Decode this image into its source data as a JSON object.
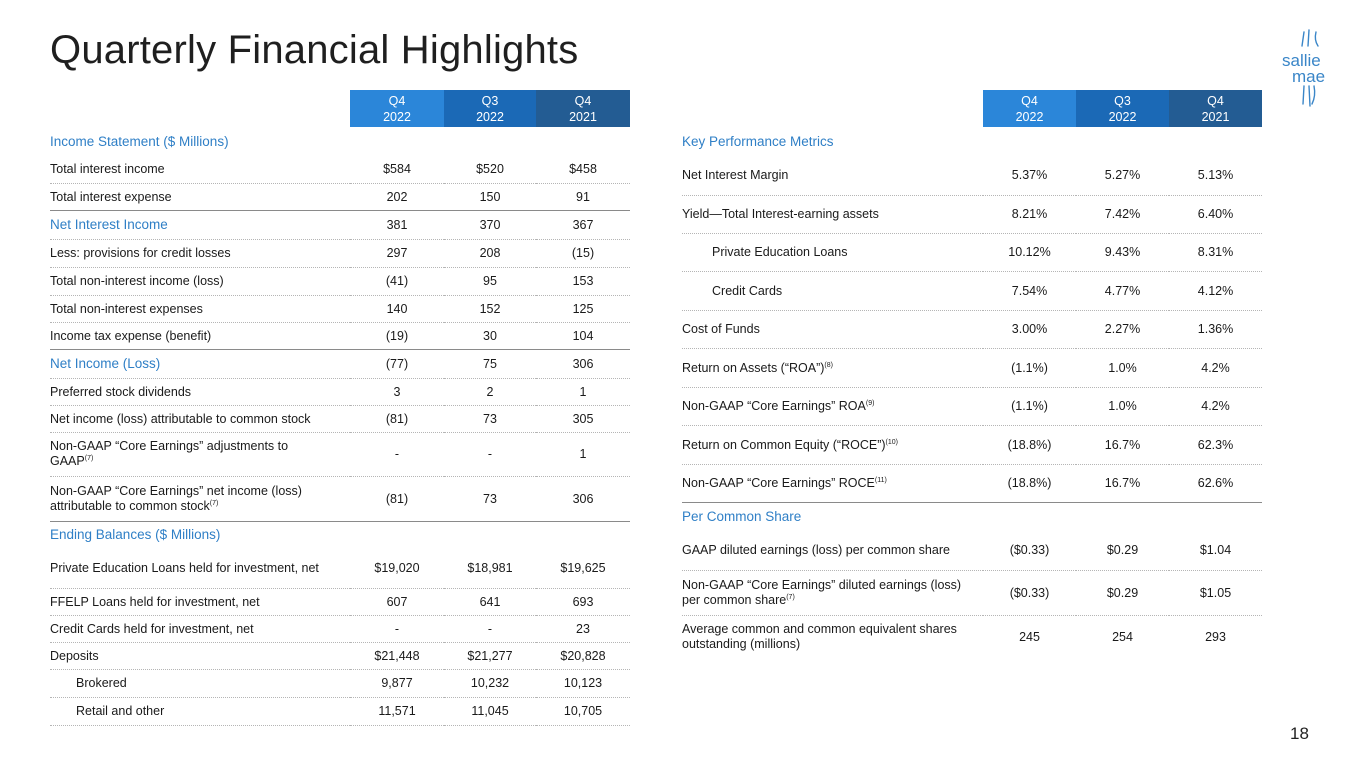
{
  "title": "Quarterly Financial Highlights",
  "page_number": "18",
  "logo": {
    "line1": "sallie",
    "line2": "mae"
  },
  "left_table": {
    "columns": [
      {
        "q": "Q4",
        "year": "2022"
      },
      {
        "q": "Q3",
        "year": "2022"
      },
      {
        "q": "Q4",
        "year": "2021"
      }
    ],
    "section_income": "Income Statement ($ Millions)",
    "income_rows": [
      {
        "label": "Total interest income",
        "v": [
          "$584",
          "$520",
          "$458"
        ]
      },
      {
        "label": "Total interest expense",
        "v": [
          "202",
          "150",
          "91"
        ]
      },
      {
        "label": "Net Interest Income",
        "v": [
          "381",
          "370",
          "367"
        ]
      },
      {
        "label": "Less: provisions for credit losses",
        "v": [
          "297",
          "208",
          "(15)"
        ]
      },
      {
        "label": "Total non-interest income (loss)",
        "v": [
          "(41)",
          "95",
          "153"
        ]
      },
      {
        "label": "Total non-interest expenses",
        "v": [
          "140",
          "152",
          "125"
        ]
      },
      {
        "label": "Income tax expense (benefit)",
        "v": [
          "(19)",
          "30",
          "104"
        ]
      },
      {
        "label": "Net Income (Loss)",
        "v": [
          "(77)",
          "75",
          "306"
        ]
      },
      {
        "label": "Preferred stock dividends",
        "v": [
          "3",
          "2",
          "1"
        ]
      },
      {
        "label": "Net income (loss) attributable to common stock",
        "v": [
          "(81)",
          "73",
          "305"
        ]
      },
      {
        "label": "Non-GAAP “Core Earnings” adjustments to GAAP",
        "sup": "(7)",
        "v": [
          "-",
          "-",
          "1"
        ]
      },
      {
        "label": "Non-GAAP “Core Earnings” net income (loss) attributable to common stock",
        "sup": "(7)",
        "v": [
          "(81)",
          "73",
          "306"
        ]
      }
    ],
    "section_balances": "Ending Balances ($ Millions)",
    "balance_rows": [
      {
        "label": "Private Education Loans held for investment, net",
        "v": [
          "$19,020",
          "$18,981",
          "$19,625"
        ]
      },
      {
        "label": "FFELP Loans held for investment, net",
        "v": [
          "607",
          "641",
          "693"
        ]
      },
      {
        "label": "Credit Cards held for investment, net",
        "v": [
          "-",
          "-",
          "23"
        ]
      },
      {
        "label": "Deposits",
        "v": [
          "$21,448",
          "$21,277",
          "$20,828"
        ]
      },
      {
        "label": "Brokered",
        "v": [
          "9,877",
          "10,232",
          "10,123"
        ]
      },
      {
        "label": "Retail and other",
        "v": [
          "11,571",
          "11,045",
          "10,705"
        ]
      }
    ]
  },
  "right_table": {
    "columns": [
      {
        "q": "Q4",
        "year": "2022"
      },
      {
        "q": "Q3",
        "year": "2022"
      },
      {
        "q": "Q4",
        "year": "2021"
      }
    ],
    "section_kpm": "Key Performance Metrics",
    "kpm_rows": [
      {
        "label": "Net Interest Margin",
        "v": [
          "5.37%",
          "5.27%",
          "5.13%"
        ]
      },
      {
        "label": "Yield—Total Interest-earning assets",
        "v": [
          "8.21%",
          "7.42%",
          "6.40%"
        ]
      },
      {
        "label": "Private Education Loans",
        "v": [
          "10.12%",
          "9.43%",
          "8.31%"
        ]
      },
      {
        "label": "Credit Cards",
        "v": [
          "7.54%",
          "4.77%",
          "4.12%"
        ]
      },
      {
        "label": "Cost of Funds",
        "v": [
          "3.00%",
          "2.27%",
          "1.36%"
        ]
      },
      {
        "label": "Return on Assets (“ROA”)",
        "sup": "(8)",
        "v": [
          "(1.1%)",
          "1.0%",
          "4.2%"
        ]
      },
      {
        "label": "Non-GAAP “Core Earnings” ROA",
        "sup": "(9)",
        "v": [
          "(1.1%)",
          "1.0%",
          "4.2%"
        ]
      },
      {
        "label": "Return on Common Equity (“ROCE”)",
        "sup": "(10)",
        "v": [
          "(18.8%)",
          "16.7%",
          "62.3%"
        ]
      },
      {
        "label": "Non-GAAP “Core Earnings” ROCE",
        "sup": "(11)",
        "v": [
          "(18.8%)",
          "16.7%",
          "62.6%"
        ]
      }
    ],
    "section_share": "Per Common Share",
    "share_rows": [
      {
        "label": "GAAP diluted earnings (loss) per common share",
        "v": [
          "($0.33)",
          "$0.29",
          "$1.04"
        ]
      },
      {
        "label": "Non-GAAP “Core Earnings” diluted earnings (loss) per common share",
        "sup": "(7)",
        "v": [
          "($0.33)",
          "$0.29",
          "$1.05"
        ]
      },
      {
        "label": "Average common and common equivalent shares outstanding (millions)",
        "v": [
          "245",
          "254",
          "293"
        ]
      }
    ]
  }
}
